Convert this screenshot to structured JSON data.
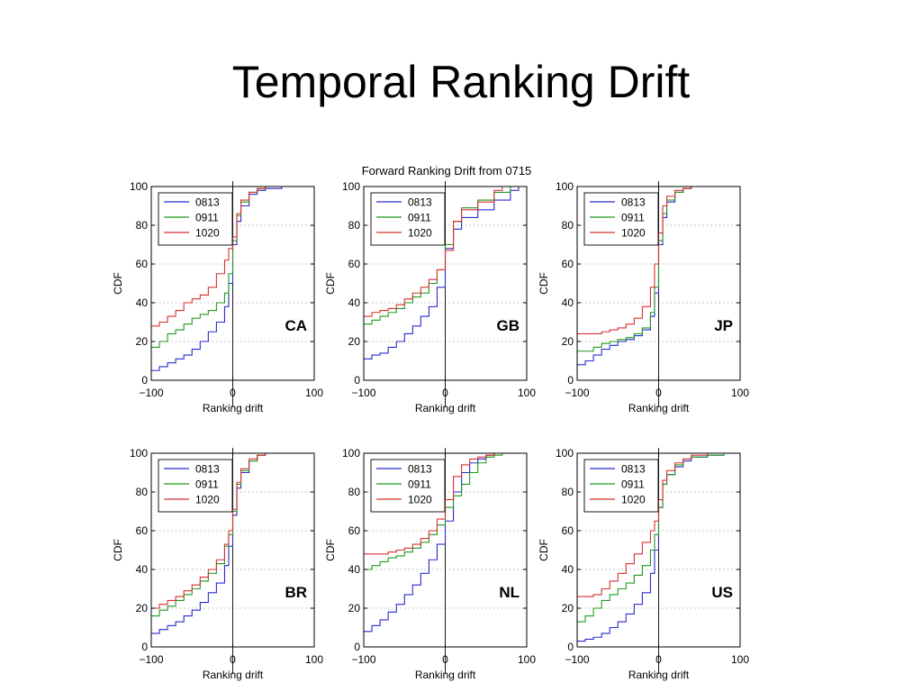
{
  "slide": {
    "title": "Temporal Ranking Drift"
  },
  "figure": {
    "suptitle": "Forward Ranking Drift from 0715"
  },
  "colors": {
    "0813": "#2a2ad0",
    "0911": "#1f9a1f",
    "1020": "#d83030"
  },
  "chart_data": [
    {
      "type": "line",
      "panel": "CA",
      "xlabel": "Ranking drift",
      "ylabel": "CDF",
      "xlim": [
        -100,
        100
      ],
      "ylim": [
        0,
        100
      ],
      "xticks": [
        "−100",
        "0",
        "100"
      ],
      "yticks": [
        "0",
        "20",
        "40",
        "60",
        "80",
        "100"
      ],
      "grid": "dotted horizontal",
      "legend": "top-left",
      "series": [
        {
          "name": "0813",
          "x": [
            -100,
            -90,
            -80,
            -70,
            -60,
            -50,
            -40,
            -30,
            -20,
            -10,
            -5,
            0,
            5,
            10,
            20,
            30,
            40,
            60
          ],
          "y": [
            5,
            7,
            9,
            11,
            13,
            16,
            20,
            25,
            30,
            38,
            50,
            70,
            82,
            90,
            96,
            98,
            99,
            100
          ]
        },
        {
          "name": "0911",
          "x": [
            -100,
            -90,
            -80,
            -70,
            -60,
            -50,
            -40,
            -30,
            -20,
            -10,
            -5,
            0,
            5,
            10,
            20,
            30,
            40,
            60
          ],
          "y": [
            17,
            20,
            24,
            26,
            29,
            32,
            34,
            36,
            40,
            45,
            55,
            72,
            85,
            92,
            97,
            99,
            100,
            100
          ]
        },
        {
          "name": "1020",
          "x": [
            -100,
            -90,
            -80,
            -70,
            -60,
            -50,
            -40,
            -30,
            -20,
            -10,
            -5,
            0,
            5,
            10,
            20,
            30,
            40,
            60
          ],
          "y": [
            28,
            30,
            33,
            36,
            40,
            42,
            44,
            48,
            55,
            62,
            68,
            74,
            86,
            93,
            97,
            99,
            100,
            100
          ]
        }
      ]
    },
    {
      "type": "line",
      "panel": "GB",
      "xlabel": "Ranking drift",
      "ylabel": "CDF",
      "xlim": [
        -100,
        100
      ],
      "ylim": [
        0,
        100
      ],
      "xticks": [
        "−100",
        "0",
        "100"
      ],
      "yticks": [
        "0",
        "20",
        "40",
        "60",
        "80",
        "100"
      ],
      "grid": "dotted horizontal",
      "legend": "top-left",
      "series": [
        {
          "name": "0813",
          "x": [
            -100,
            -90,
            -80,
            -70,
            -60,
            -50,
            -40,
            -30,
            -20,
            -10,
            0,
            10,
            20,
            40,
            60,
            80,
            90
          ],
          "y": [
            11,
            13,
            14,
            17,
            20,
            24,
            28,
            33,
            38,
            48,
            68,
            78,
            84,
            88,
            93,
            98,
            100
          ]
        },
        {
          "name": "0911",
          "x": [
            -100,
            -90,
            -80,
            -70,
            -60,
            -50,
            -40,
            -30,
            -20,
            -10,
            0,
            10,
            20,
            40,
            60,
            80
          ],
          "y": [
            29,
            31,
            33,
            35,
            37,
            40,
            43,
            45,
            50,
            57,
            70,
            82,
            89,
            93,
            97,
            100
          ]
        },
        {
          "name": "1020",
          "x": [
            -100,
            -90,
            -80,
            -70,
            -60,
            -50,
            -40,
            -30,
            -20,
            -10,
            0,
            10,
            20,
            40,
            60,
            70
          ],
          "y": [
            33,
            35,
            36,
            37,
            39,
            42,
            45,
            48,
            52,
            57,
            67,
            82,
            88,
            92,
            98,
            100
          ]
        }
      ]
    },
    {
      "type": "line",
      "panel": "JP",
      "xlabel": "Ranking drift",
      "ylabel": "CDF",
      "xlim": [
        -100,
        100
      ],
      "ylim": [
        0,
        100
      ],
      "xticks": [
        "−100",
        "0",
        "100"
      ],
      "yticks": [
        "0",
        "20",
        "40",
        "60",
        "80",
        "100"
      ],
      "grid": "dotted horizontal",
      "legend": "top-left",
      "series": [
        {
          "name": "0813",
          "x": [
            -100,
            -90,
            -80,
            -70,
            -60,
            -50,
            -40,
            -30,
            -20,
            -10,
            -5,
            0,
            5,
            10,
            20,
            30,
            40,
            60
          ],
          "y": [
            8,
            10,
            13,
            16,
            18,
            20,
            21,
            23,
            26,
            33,
            45,
            70,
            84,
            92,
            97,
            99,
            100,
            100
          ]
        },
        {
          "name": "0911",
          "x": [
            -100,
            -90,
            -80,
            -70,
            -60,
            -50,
            -40,
            -30,
            -20,
            -10,
            -5,
            0,
            5,
            10,
            20,
            30,
            40,
            60
          ],
          "y": [
            15,
            15,
            17,
            19,
            20,
            21,
            22,
            24,
            27,
            35,
            48,
            72,
            86,
            93,
            97,
            99,
            100,
            100
          ]
        },
        {
          "name": "1020",
          "x": [
            -100,
            -90,
            -80,
            -70,
            -60,
            -50,
            -40,
            -30,
            -20,
            -10,
            -5,
            0,
            5,
            10,
            20,
            30,
            40,
            60
          ],
          "y": [
            24,
            24,
            24,
            25,
            26,
            27,
            29,
            32,
            38,
            48,
            60,
            76,
            90,
            95,
            98,
            99,
            100,
            100
          ]
        }
      ]
    },
    {
      "type": "line",
      "panel": "BR",
      "xlabel": "Ranking drift",
      "ylabel": "CDF",
      "xlim": [
        -100,
        100
      ],
      "ylim": [
        0,
        100
      ],
      "xticks": [
        "−100",
        "0",
        "100"
      ],
      "yticks": [
        "0",
        "20",
        "40",
        "60",
        "80",
        "100"
      ],
      "grid": "dotted horizontal",
      "legend": "top-left",
      "series": [
        {
          "name": "0813",
          "x": [
            -100,
            -90,
            -80,
            -70,
            -60,
            -50,
            -40,
            -30,
            -20,
            -10,
            -5,
            0,
            5,
            10,
            20,
            30,
            40,
            50
          ],
          "y": [
            7,
            9,
            11,
            13,
            16,
            19,
            23,
            28,
            33,
            42,
            52,
            68,
            82,
            90,
            96,
            99,
            100,
            100
          ]
        },
        {
          "name": "0911",
          "x": [
            -100,
            -90,
            -80,
            -70,
            -60,
            -50,
            -40,
            -30,
            -20,
            -10,
            -5,
            0,
            5,
            10,
            20,
            30,
            40,
            50
          ],
          "y": [
            16,
            19,
            21,
            24,
            27,
            30,
            34,
            38,
            43,
            52,
            58,
            70,
            84,
            91,
            96,
            99,
            100,
            100
          ]
        },
        {
          "name": "1020",
          "x": [
            -100,
            -90,
            -80,
            -70,
            -60,
            -50,
            -40,
            -30,
            -20,
            -10,
            -5,
            0,
            5,
            10,
            20,
            30,
            40,
            50
          ],
          "y": [
            20,
            22,
            24,
            26,
            29,
            32,
            36,
            40,
            45,
            53,
            60,
            71,
            85,
            92,
            97,
            99,
            100,
            100
          ]
        }
      ]
    },
    {
      "type": "line",
      "panel": "NL",
      "xlabel": "Ranking drift",
      "ylabel": "CDF",
      "xlim": [
        -100,
        100
      ],
      "ylim": [
        0,
        100
      ],
      "xticks": [
        "−100",
        "0",
        "100"
      ],
      "yticks": [
        "0",
        "20",
        "40",
        "60",
        "80",
        "100"
      ],
      "grid": "dotted horizontal",
      "legend": "top-left",
      "series": [
        {
          "name": "0813",
          "x": [
            -100,
            -90,
            -80,
            -70,
            -60,
            -50,
            -40,
            -30,
            -20,
            -10,
            0,
            10,
            20,
            30,
            40,
            50,
            60,
            70
          ],
          "y": [
            8,
            11,
            14,
            18,
            22,
            27,
            32,
            38,
            45,
            53,
            65,
            80,
            90,
            95,
            97,
            99,
            100,
            100
          ]
        },
        {
          "name": "0911",
          "x": [
            -100,
            -90,
            -80,
            -70,
            -60,
            -50,
            -40,
            -30,
            -20,
            -10,
            0,
            10,
            20,
            30,
            40,
            50,
            60,
            70
          ],
          "y": [
            40,
            42,
            44,
            46,
            47,
            49,
            51,
            54,
            58,
            63,
            72,
            78,
            84,
            90,
            95,
            98,
            99,
            100
          ]
        },
        {
          "name": "1020",
          "x": [
            -100,
            -90,
            -80,
            -70,
            -60,
            -50,
            -40,
            -30,
            -20,
            -10,
            0,
            10,
            20,
            30,
            40,
            50,
            60,
            70
          ],
          "y": [
            48,
            48,
            48,
            49,
            50,
            51,
            53,
            56,
            60,
            66,
            76,
            88,
            94,
            97,
            98,
            99,
            100,
            100
          ]
        }
      ]
    },
    {
      "type": "line",
      "panel": "US",
      "xlabel": "Ranking drift",
      "ylabel": "CDF",
      "xlim": [
        -100,
        100
      ],
      "ylim": [
        0,
        100
      ],
      "xticks": [
        "−100",
        "0",
        "100"
      ],
      "yticks": [
        "0",
        "20",
        "40",
        "60",
        "80",
        "100"
      ],
      "grid": "dotted horizontal",
      "legend": "top-left",
      "series": [
        {
          "name": "0813",
          "x": [
            -100,
            -90,
            -80,
            -70,
            -60,
            -50,
            -40,
            -30,
            -20,
            -10,
            -5,
            0,
            5,
            10,
            20,
            30,
            40,
            60,
            80
          ],
          "y": [
            3,
            4,
            5,
            7,
            10,
            13,
            17,
            22,
            28,
            38,
            50,
            72,
            84,
            89,
            93,
            96,
            98,
            99,
            100
          ]
        },
        {
          "name": "0911",
          "x": [
            -100,
            -90,
            -80,
            -70,
            -60,
            -50,
            -40,
            -30,
            -20,
            -10,
            -5,
            0,
            5,
            10,
            20,
            30,
            40,
            60,
            80
          ],
          "y": [
            13,
            16,
            20,
            24,
            27,
            30,
            33,
            37,
            42,
            50,
            58,
            72,
            84,
            89,
            94,
            97,
            98,
            99,
            100
          ]
        },
        {
          "name": "1020",
          "x": [
            -100,
            -90,
            -80,
            -70,
            -60,
            -50,
            -40,
            -30,
            -20,
            -10,
            -5,
            0,
            5,
            10,
            20,
            30,
            40,
            60,
            80
          ],
          "y": [
            26,
            26,
            27,
            30,
            34,
            38,
            43,
            48,
            54,
            60,
            65,
            76,
            86,
            91,
            95,
            97,
            99,
            100,
            100
          ]
        }
      ]
    }
  ]
}
